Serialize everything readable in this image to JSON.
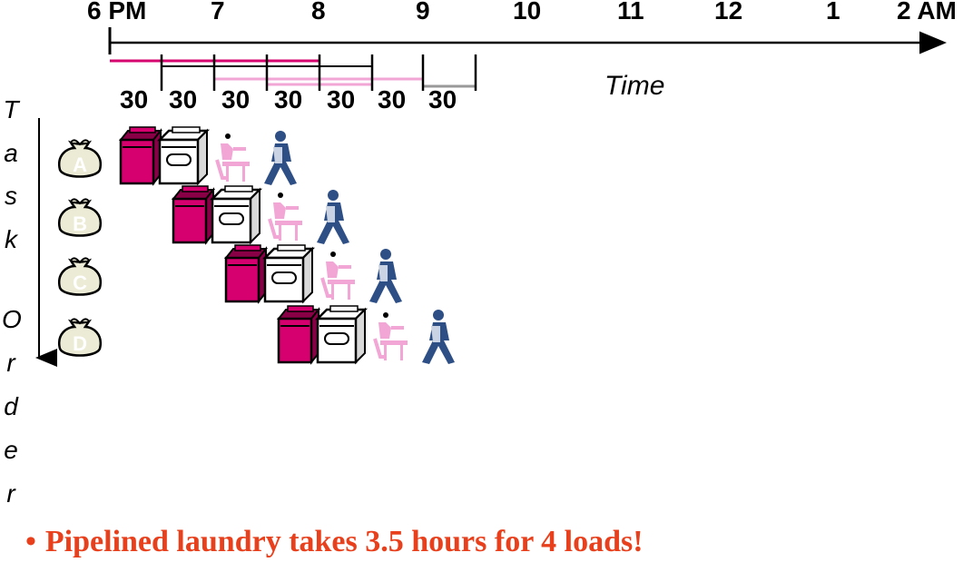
{
  "timeline": {
    "hours": [
      "6 PM",
      "7",
      "8",
      "9",
      "10",
      "11",
      "12",
      "1",
      "2 AM"
    ],
    "durations": [
      "30",
      "30",
      "30",
      "30",
      "30",
      "30",
      "30"
    ],
    "axis_label": "Time"
  },
  "task_order_label": [
    "T",
    "a",
    "s",
    "k",
    "O",
    "r",
    "d",
    "e",
    "r"
  ],
  "loads": [
    "A",
    "B",
    "C",
    "D"
  ],
  "stage_icons": [
    "washer-icon",
    "dryer-icon",
    "folder-person-icon",
    "walking-person-icon"
  ],
  "colors": {
    "washer": "#d6006e",
    "folder": "#f2a6d6",
    "walker": "#2e4f86",
    "footer": "#e8401c",
    "gray_bar": "#999999"
  },
  "footer": {
    "bullet": "•",
    "text": "Pipelined laundry takes 3.5 hours for 4 loads!"
  }
}
